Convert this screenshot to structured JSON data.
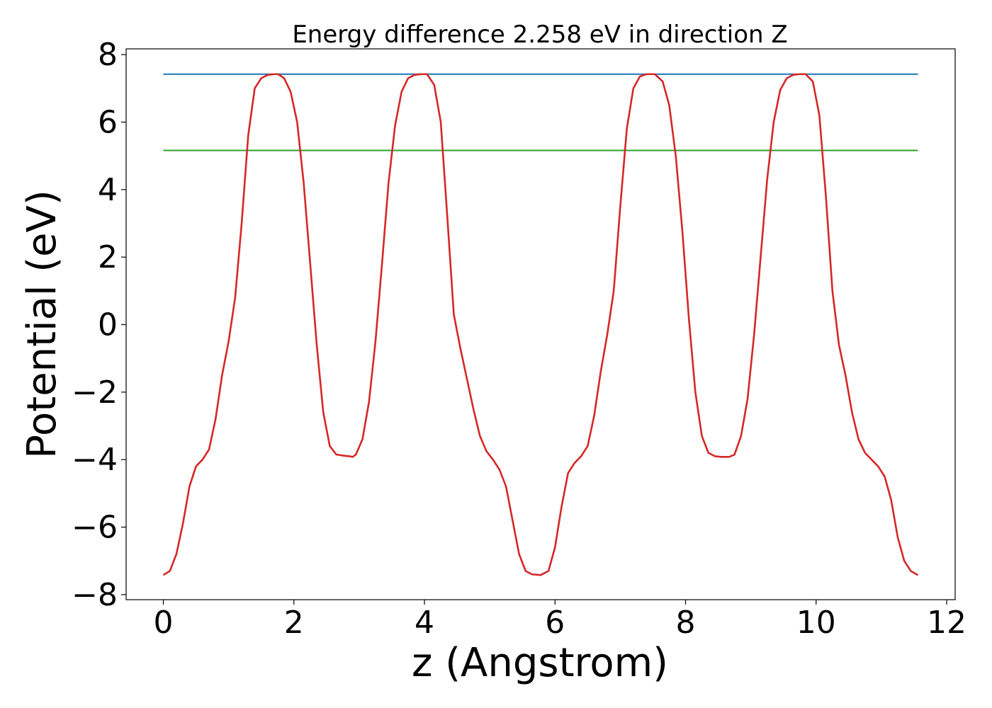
{
  "chart_data": {
    "type": "line",
    "title": "Energy difference 2.258 eV in direction Z",
    "xlabel": "z (Angstrom)",
    "ylabel": "Potential (eV)",
    "xlim": [
      -0.57,
      12.13
    ],
    "ylim": [
      -8.15,
      8.17
    ],
    "xticks": [
      0,
      2,
      4,
      6,
      8,
      10,
      12
    ],
    "xtick_labels": [
      "0",
      "2",
      "4",
      "6",
      "8",
      "10",
      "12"
    ],
    "yticks": [
      -8,
      -6,
      -4,
      -2,
      0,
      2,
      4,
      6,
      8
    ],
    "ytick_labels": [
      "−8",
      "−6",
      "−4",
      "−2",
      "0",
      "2",
      "4",
      "6",
      "8"
    ],
    "grid": false,
    "series": [
      {
        "color": "#1f77b4",
        "x": [
          0,
          11.56
        ],
        "y": [
          7.42,
          7.42
        ]
      },
      {
        "color": "#2ca02c",
        "x": [
          0,
          11.56
        ],
        "y": [
          5.16,
          5.16
        ]
      },
      {
        "color": "#d62728",
        "x": [
          0,
          0.1,
          0.2,
          0.3,
          0.4,
          0.5,
          0.6,
          0.7,
          0.8,
          0.9,
          1.0,
          1.1,
          1.2,
          1.3,
          1.4,
          1.5,
          1.6,
          1.7,
          1.76,
          1.85,
          1.95,
          2.05,
          2.15,
          2.25,
          2.35,
          2.45,
          2.55,
          2.65,
          2.75,
          2.85,
          2.9,
          2.95,
          3.05,
          3.15,
          3.25,
          3.35,
          3.45,
          3.55,
          3.65,
          3.75,
          3.85,
          3.95,
          4.04,
          4.15,
          4.25,
          4.35,
          4.45,
          4.55,
          4.65,
          4.75,
          4.85,
          4.95,
          5.05,
          5.15,
          5.25,
          5.35,
          5.45,
          5.55,
          5.65,
          5.78,
          5.9,
          6.0,
          6.1,
          6.2,
          6.3,
          6.4,
          6.5,
          6.6,
          6.7,
          6.8,
          6.9,
          7.0,
          7.1,
          7.2,
          7.3,
          7.4,
          7.53,
          7.65,
          7.75,
          7.85,
          7.95,
          8.05,
          8.15,
          8.25,
          8.35,
          8.45,
          8.55,
          8.67,
          8.75,
          8.85,
          8.95,
          9.05,
          9.15,
          9.25,
          9.35,
          9.45,
          9.55,
          9.65,
          9.75,
          9.84,
          9.95,
          10.05,
          10.15,
          10.25,
          10.35,
          10.45,
          10.55,
          10.65,
          10.75,
          10.85,
          10.95,
          11.05,
          11.15,
          11.25,
          11.35,
          11.45,
          11.56
        ],
        "y": [
          -7.42,
          -7.3,
          -6.8,
          -5.9,
          -4.8,
          -4.2,
          -4.0,
          -3.7,
          -2.8,
          -1.5,
          -0.5,
          0.8,
          3.0,
          5.6,
          7.0,
          7.3,
          7.4,
          7.42,
          7.42,
          7.3,
          6.9,
          6.0,
          4.2,
          1.8,
          -0.6,
          -2.6,
          -3.6,
          -3.85,
          -3.88,
          -3.9,
          -3.92,
          -3.85,
          -3.4,
          -2.3,
          -0.5,
          1.8,
          4.2,
          5.9,
          6.9,
          7.3,
          7.4,
          7.42,
          7.42,
          7.1,
          6.0,
          3.2,
          0.3,
          -0.7,
          -1.6,
          -2.5,
          -3.3,
          -3.75,
          -4.0,
          -4.3,
          -4.8,
          -5.8,
          -6.8,
          -7.3,
          -7.4,
          -7.42,
          -7.3,
          -6.6,
          -5.4,
          -4.4,
          -4.1,
          -3.9,
          -3.6,
          -2.7,
          -1.4,
          -0.3,
          1.0,
          3.5,
          5.8,
          7.0,
          7.35,
          7.42,
          7.42,
          7.2,
          6.5,
          5.0,
          2.8,
          0.2,
          -2.0,
          -3.3,
          -3.8,
          -3.9,
          -3.92,
          -3.92,
          -3.85,
          -3.3,
          -2.2,
          -0.3,
          2.0,
          4.3,
          6.0,
          6.95,
          7.3,
          7.4,
          7.42,
          7.42,
          7.2,
          6.2,
          3.8,
          1.0,
          -0.6,
          -1.5,
          -2.6,
          -3.4,
          -3.8,
          -4.0,
          -4.2,
          -4.5,
          -5.2,
          -6.3,
          -7.0,
          -7.3,
          -7.42
        ]
      }
    ]
  }
}
